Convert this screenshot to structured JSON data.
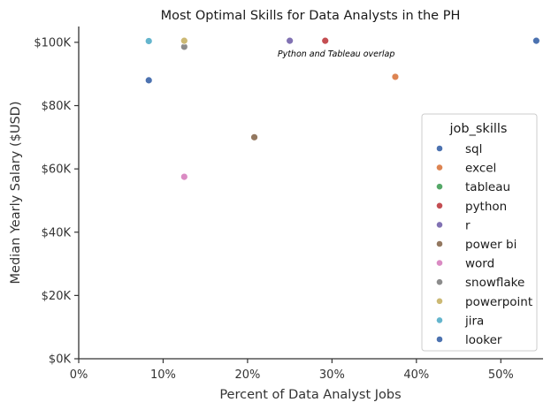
{
  "chart_data": {
    "type": "scatter",
    "title": "Most Optimal Skills for Data Analysts in the PH",
    "xlabel": "Percent of Data Analyst Jobs",
    "ylabel": "Median Yearly Salary ($USD)",
    "xlim": [
      0,
      55
    ],
    "ylim": [
      0,
      105000
    ],
    "x_ticks": [
      0,
      10,
      20,
      30,
      40,
      50
    ],
    "x_tick_labels": [
      "0%",
      "10%",
      "20%",
      "30%",
      "40%",
      "50%"
    ],
    "y_ticks": [
      0,
      20000,
      40000,
      60000,
      80000,
      100000
    ],
    "y_tick_labels": [
      "$0K",
      "$20K",
      "$40K",
      "$60K",
      "$80K",
      "$100K"
    ],
    "grid": false,
    "legend_title": "job_skills",
    "legend_position": "right",
    "series": [
      {
        "name": "sql",
        "color": "#4c72b0",
        "x": 54.2,
        "y": 100500
      },
      {
        "name": "excel",
        "color": "#dd8452",
        "x": 37.5,
        "y": 89100
      },
      {
        "name": "tableau",
        "color": "#55a868",
        "x": 29.2,
        "y": 100500
      },
      {
        "name": "python",
        "color": "#c44e52",
        "x": 29.2,
        "y": 100500
      },
      {
        "name": "r",
        "color": "#8172b3",
        "x": 25.0,
        "y": 100500
      },
      {
        "name": "power bi",
        "color": "#937860",
        "x": 20.8,
        "y": 70000
      },
      {
        "name": "word",
        "color": "#da8bc3",
        "x": 12.5,
        "y": 57500
      },
      {
        "name": "snowflake",
        "color": "#8c8c8c",
        "x": 12.5,
        "y": 98600
      },
      {
        "name": "powerpoint",
        "color": "#ccb974",
        "x": 12.5,
        "y": 100500
      },
      {
        "name": "jira",
        "color": "#64b5cd",
        "x": 8.3,
        "y": 100400
      },
      {
        "name": "looker",
        "color": "#4c72b0",
        "x": 8.3,
        "y": 88000
      }
    ],
    "annotations": [
      {
        "text": "Python and Tableau overlap",
        "x": 30.5,
        "y": 95500
      }
    ]
  }
}
